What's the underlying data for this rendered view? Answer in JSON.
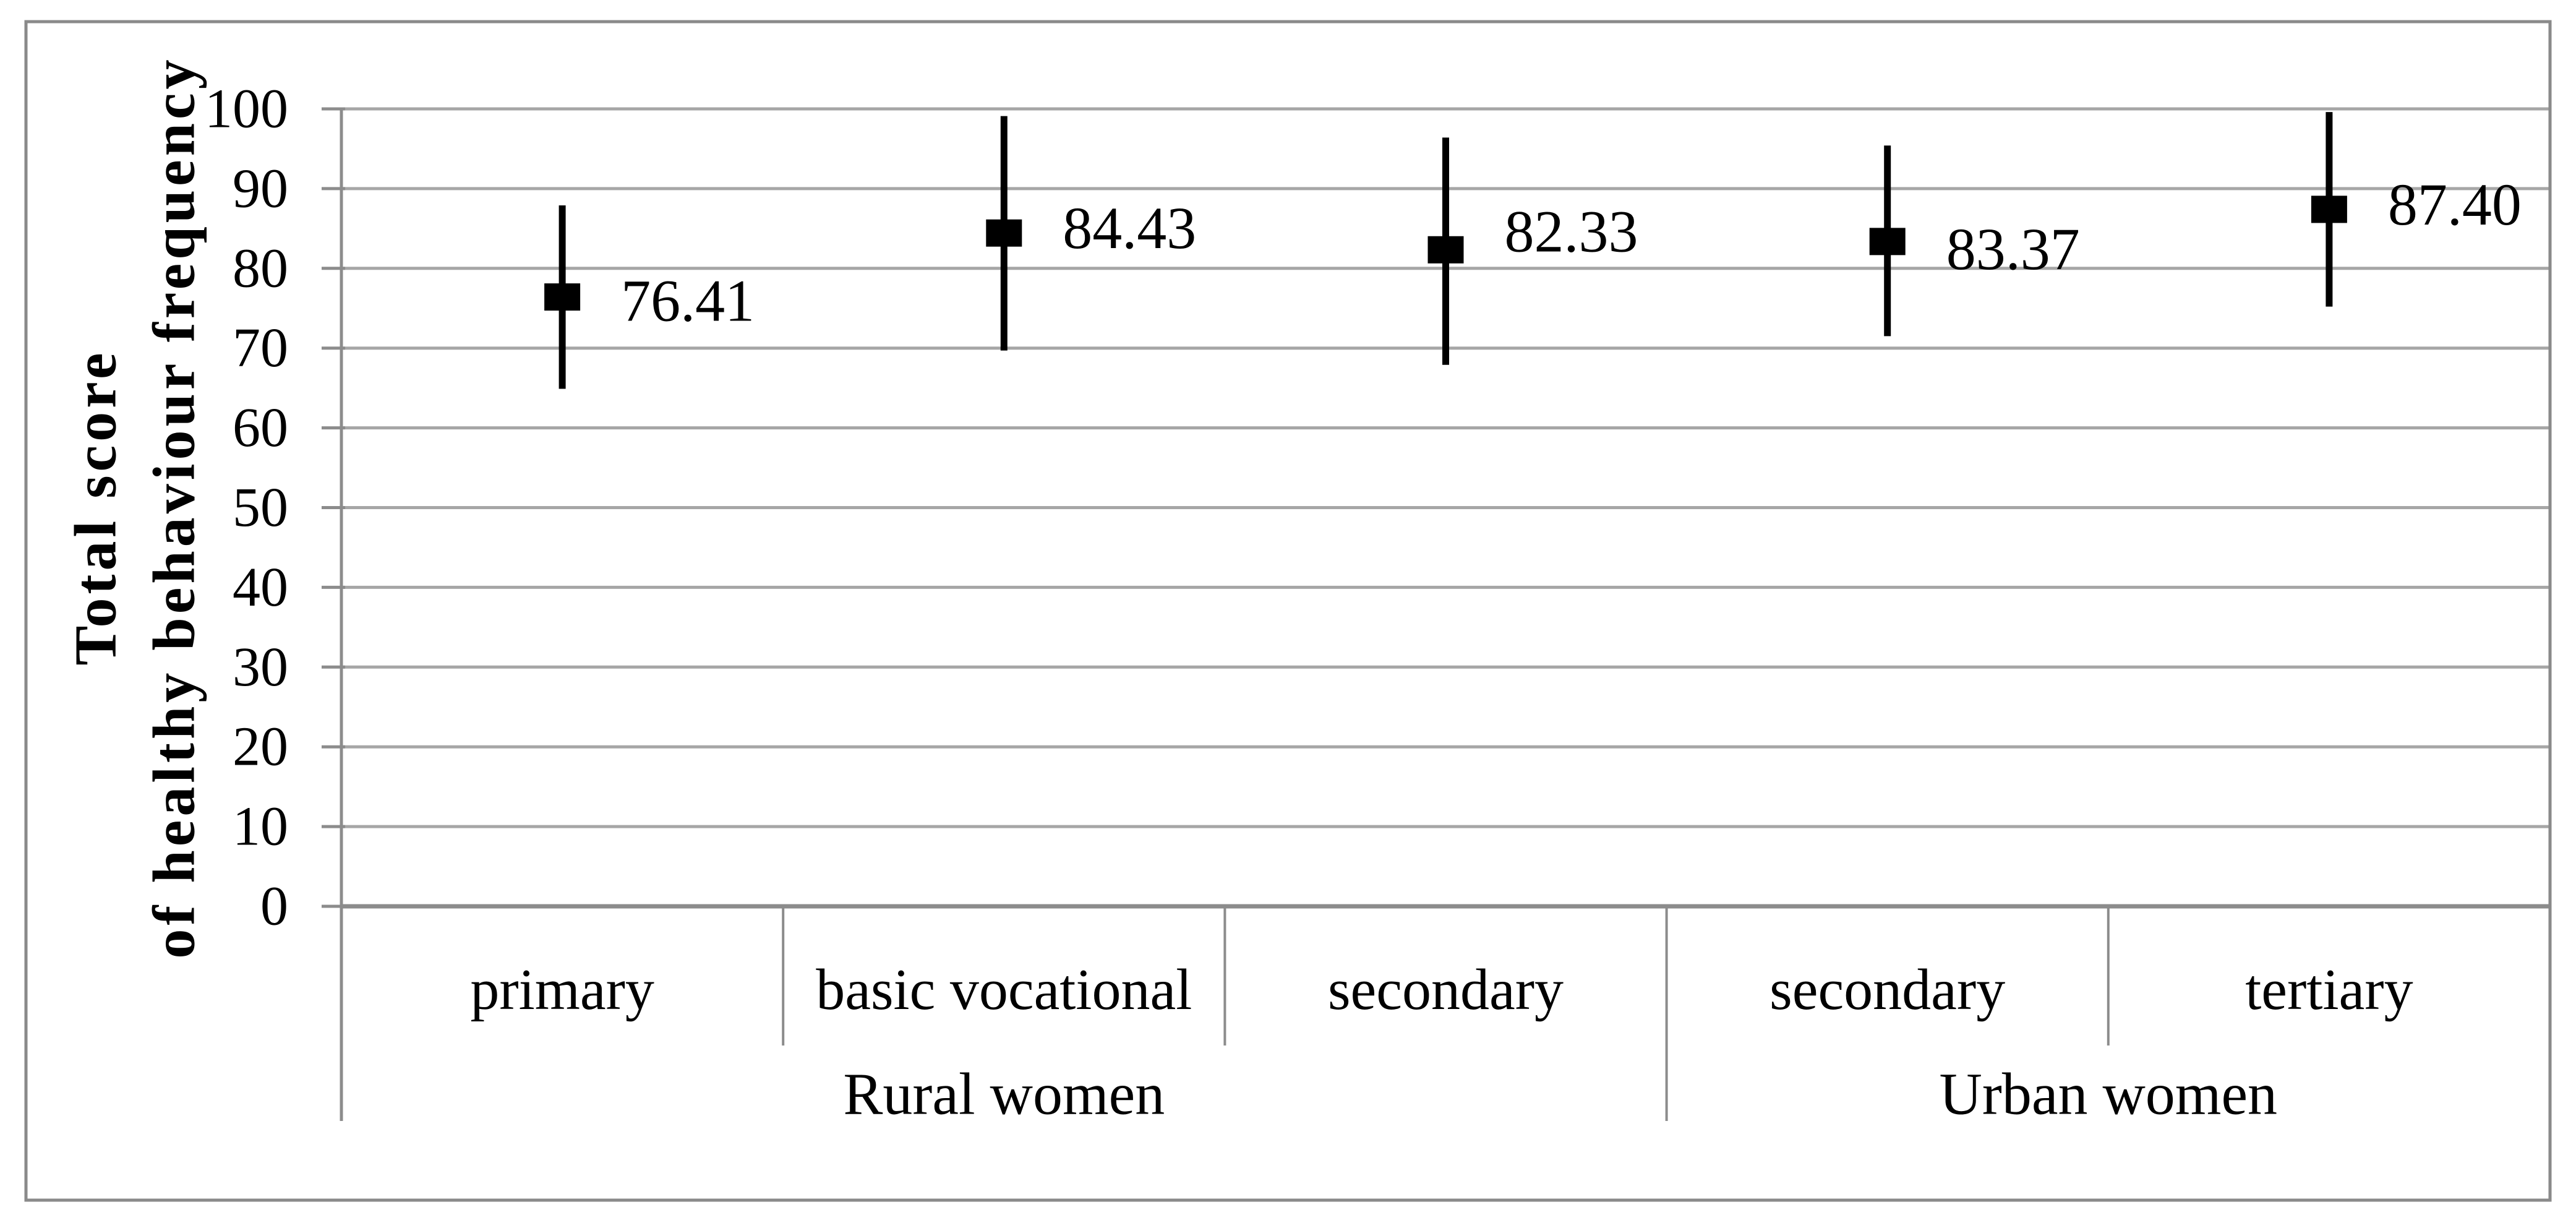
{
  "figure": {
    "background": "#ffffff",
    "frame_color": "#8a8a8a"
  },
  "chart_data": {
    "type": "scatter",
    "subtype": "mean-with-error-bars",
    "title": "",
    "ylabel_line1": "Total score",
    "ylabel_line2": "of healthy behaviour frequency",
    "xlabel": "",
    "ylim": [
      0,
      100
    ],
    "ytick_step": 10,
    "yticks": [
      0,
      10,
      20,
      30,
      40,
      50,
      60,
      70,
      80,
      90,
      100
    ],
    "grid": "horizontal",
    "legend": "none",
    "groups": [
      {
        "label": "Rural women",
        "categories": [
          "primary",
          "basic vocational",
          "secondary"
        ]
      },
      {
        "label": "Urban women",
        "categories": [
          "secondary",
          "tertiary"
        ]
      }
    ],
    "points": [
      {
        "group": "Rural women",
        "category": "primary",
        "mean": 76.41,
        "label": "76.41",
        "err_low": 64.9,
        "err_high": 87.9,
        "label_dy": 6
      },
      {
        "group": "Rural women",
        "category": "basic vocational",
        "mean": 84.43,
        "label": "84.43",
        "err_low": 69.7,
        "err_high": 99.1,
        "label_dy": -8
      },
      {
        "group": "Rural women",
        "category": "secondary",
        "mean": 82.33,
        "label": "82.33",
        "err_low": 67.9,
        "err_high": 96.4,
        "label_dy": -30
      },
      {
        "group": "Urban women",
        "category": "secondary",
        "mean": 83.37,
        "label": "83.37",
        "err_low": 71.5,
        "err_high": 95.4,
        "label_dy": 12
      },
      {
        "group": "Urban women",
        "category": "tertiary",
        "mean": 87.4,
        "label": "87.40",
        "err_low": 75.2,
        "err_high": 99.6,
        "label_dy": -8
      }
    ],
    "marker": {
      "shape": "square",
      "color": "#000000"
    },
    "colors": {
      "gridline": "#a6a6a6",
      "axis": "#8c8c8c",
      "divider": "#8c8c8c",
      "zero_line": "#8c8c8c",
      "error_bar": "#000000",
      "text": "#000000"
    }
  }
}
